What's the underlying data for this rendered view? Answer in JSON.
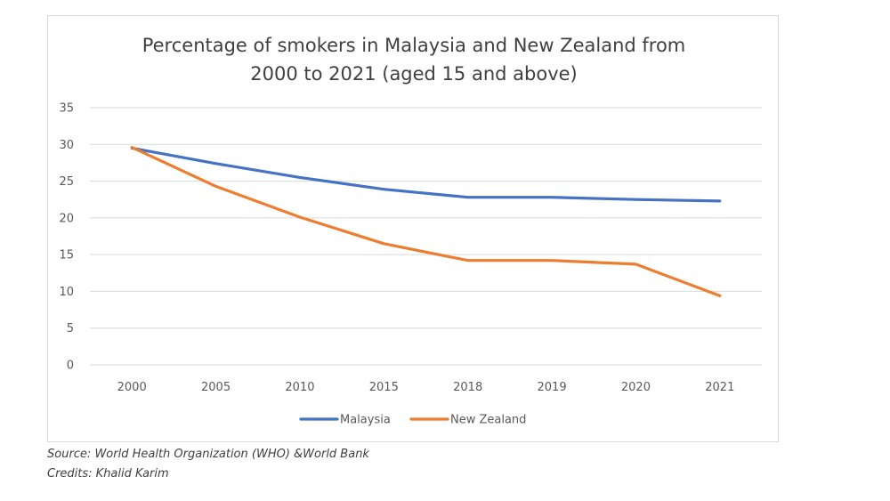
{
  "chart_data": {
    "type": "line",
    "title_lines": [
      "Percentage of smokers in Malaysia and New Zealand from",
      "2000 to 2021 (aged 15 and above)"
    ],
    "categories": [
      "2000",
      "2005",
      "2010",
      "2015",
      "2018",
      "2019",
      "2020",
      "2021"
    ],
    "ylim": [
      0,
      35
    ],
    "yticks": [
      0,
      5,
      10,
      15,
      20,
      25,
      30,
      35
    ],
    "grid": true,
    "legend_position": "bottom",
    "series": [
      {
        "name": "Malaysia",
        "color": "#4472c4",
        "values": [
          29.5,
          27.4,
          25.5,
          23.9,
          22.8,
          22.8,
          22.5,
          22.3
        ]
      },
      {
        "name": "New Zealand",
        "color": "#ed7d31",
        "values": [
          29.6,
          24.3,
          20.1,
          16.5,
          14.2,
          14.2,
          13.7,
          9.4
        ]
      }
    ]
  },
  "footer": {
    "source": "Source: World Health Organization (WHO) &World Bank",
    "credits": "Credits: Khalid Karim"
  }
}
